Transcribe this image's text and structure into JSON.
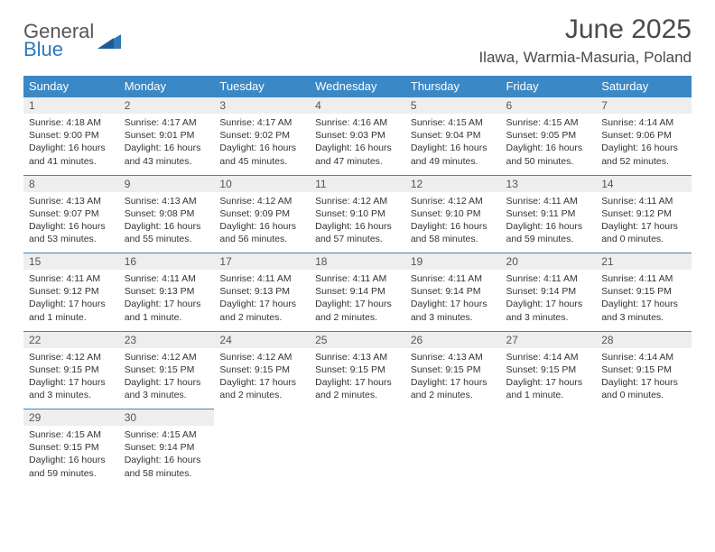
{
  "brand": {
    "word1": "General",
    "word2": "Blue"
  },
  "title": "June 2025",
  "location": "Ilawa, Warmia-Masuria, Poland",
  "colors": {
    "header_bg": "#3b88c6",
    "header_text": "#ffffff",
    "daynum_bg": "#eeeeee",
    "row_border": "#3b88c6",
    "body_text": "#333333",
    "title_text": "#4a4a4a"
  },
  "weekdays": [
    "Sunday",
    "Monday",
    "Tuesday",
    "Wednesday",
    "Thursday",
    "Friday",
    "Saturday"
  ],
  "weeks": [
    [
      {
        "n": "1",
        "sr": "Sunrise: 4:18 AM",
        "ss": "Sunset: 9:00 PM",
        "d1": "Daylight: 16 hours",
        "d2": "and 41 minutes."
      },
      {
        "n": "2",
        "sr": "Sunrise: 4:17 AM",
        "ss": "Sunset: 9:01 PM",
        "d1": "Daylight: 16 hours",
        "d2": "and 43 minutes."
      },
      {
        "n": "3",
        "sr": "Sunrise: 4:17 AM",
        "ss": "Sunset: 9:02 PM",
        "d1": "Daylight: 16 hours",
        "d2": "and 45 minutes."
      },
      {
        "n": "4",
        "sr": "Sunrise: 4:16 AM",
        "ss": "Sunset: 9:03 PM",
        "d1": "Daylight: 16 hours",
        "d2": "and 47 minutes."
      },
      {
        "n": "5",
        "sr": "Sunrise: 4:15 AM",
        "ss": "Sunset: 9:04 PM",
        "d1": "Daylight: 16 hours",
        "d2": "and 49 minutes."
      },
      {
        "n": "6",
        "sr": "Sunrise: 4:15 AM",
        "ss": "Sunset: 9:05 PM",
        "d1": "Daylight: 16 hours",
        "d2": "and 50 minutes."
      },
      {
        "n": "7",
        "sr": "Sunrise: 4:14 AM",
        "ss": "Sunset: 9:06 PM",
        "d1": "Daylight: 16 hours",
        "d2": "and 52 minutes."
      }
    ],
    [
      {
        "n": "8",
        "sr": "Sunrise: 4:13 AM",
        "ss": "Sunset: 9:07 PM",
        "d1": "Daylight: 16 hours",
        "d2": "and 53 minutes."
      },
      {
        "n": "9",
        "sr": "Sunrise: 4:13 AM",
        "ss": "Sunset: 9:08 PM",
        "d1": "Daylight: 16 hours",
        "d2": "and 55 minutes."
      },
      {
        "n": "10",
        "sr": "Sunrise: 4:12 AM",
        "ss": "Sunset: 9:09 PM",
        "d1": "Daylight: 16 hours",
        "d2": "and 56 minutes."
      },
      {
        "n": "11",
        "sr": "Sunrise: 4:12 AM",
        "ss": "Sunset: 9:10 PM",
        "d1": "Daylight: 16 hours",
        "d2": "and 57 minutes."
      },
      {
        "n": "12",
        "sr": "Sunrise: 4:12 AM",
        "ss": "Sunset: 9:10 PM",
        "d1": "Daylight: 16 hours",
        "d2": "and 58 minutes."
      },
      {
        "n": "13",
        "sr": "Sunrise: 4:11 AM",
        "ss": "Sunset: 9:11 PM",
        "d1": "Daylight: 16 hours",
        "d2": "and 59 minutes."
      },
      {
        "n": "14",
        "sr": "Sunrise: 4:11 AM",
        "ss": "Sunset: 9:12 PM",
        "d1": "Daylight: 17 hours",
        "d2": "and 0 minutes."
      }
    ],
    [
      {
        "n": "15",
        "sr": "Sunrise: 4:11 AM",
        "ss": "Sunset: 9:12 PM",
        "d1": "Daylight: 17 hours",
        "d2": "and 1 minute."
      },
      {
        "n": "16",
        "sr": "Sunrise: 4:11 AM",
        "ss": "Sunset: 9:13 PM",
        "d1": "Daylight: 17 hours",
        "d2": "and 1 minute."
      },
      {
        "n": "17",
        "sr": "Sunrise: 4:11 AM",
        "ss": "Sunset: 9:13 PM",
        "d1": "Daylight: 17 hours",
        "d2": "and 2 minutes."
      },
      {
        "n": "18",
        "sr": "Sunrise: 4:11 AM",
        "ss": "Sunset: 9:14 PM",
        "d1": "Daylight: 17 hours",
        "d2": "and 2 minutes."
      },
      {
        "n": "19",
        "sr": "Sunrise: 4:11 AM",
        "ss": "Sunset: 9:14 PM",
        "d1": "Daylight: 17 hours",
        "d2": "and 3 minutes."
      },
      {
        "n": "20",
        "sr": "Sunrise: 4:11 AM",
        "ss": "Sunset: 9:14 PM",
        "d1": "Daylight: 17 hours",
        "d2": "and 3 minutes."
      },
      {
        "n": "21",
        "sr": "Sunrise: 4:11 AM",
        "ss": "Sunset: 9:15 PM",
        "d1": "Daylight: 17 hours",
        "d2": "and 3 minutes."
      }
    ],
    [
      {
        "n": "22",
        "sr": "Sunrise: 4:12 AM",
        "ss": "Sunset: 9:15 PM",
        "d1": "Daylight: 17 hours",
        "d2": "and 3 minutes."
      },
      {
        "n": "23",
        "sr": "Sunrise: 4:12 AM",
        "ss": "Sunset: 9:15 PM",
        "d1": "Daylight: 17 hours",
        "d2": "and 3 minutes."
      },
      {
        "n": "24",
        "sr": "Sunrise: 4:12 AM",
        "ss": "Sunset: 9:15 PM",
        "d1": "Daylight: 17 hours",
        "d2": "and 2 minutes."
      },
      {
        "n": "25",
        "sr": "Sunrise: 4:13 AM",
        "ss": "Sunset: 9:15 PM",
        "d1": "Daylight: 17 hours",
        "d2": "and 2 minutes."
      },
      {
        "n": "26",
        "sr": "Sunrise: 4:13 AM",
        "ss": "Sunset: 9:15 PM",
        "d1": "Daylight: 17 hours",
        "d2": "and 2 minutes."
      },
      {
        "n": "27",
        "sr": "Sunrise: 4:14 AM",
        "ss": "Sunset: 9:15 PM",
        "d1": "Daylight: 17 hours",
        "d2": "and 1 minute."
      },
      {
        "n": "28",
        "sr": "Sunrise: 4:14 AM",
        "ss": "Sunset: 9:15 PM",
        "d1": "Daylight: 17 hours",
        "d2": "and 0 minutes."
      }
    ],
    [
      {
        "n": "29",
        "sr": "Sunrise: 4:15 AM",
        "ss": "Sunset: 9:15 PM",
        "d1": "Daylight: 16 hours",
        "d2": "and 59 minutes."
      },
      {
        "n": "30",
        "sr": "Sunrise: 4:15 AM",
        "ss": "Sunset: 9:14 PM",
        "d1": "Daylight: 16 hours",
        "d2": "and 58 minutes."
      },
      null,
      null,
      null,
      null,
      null
    ]
  ]
}
